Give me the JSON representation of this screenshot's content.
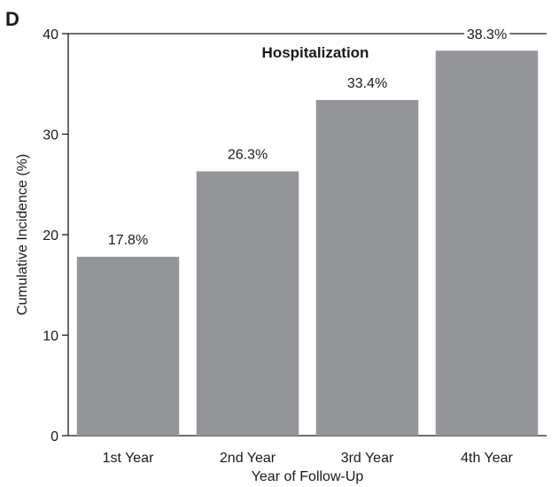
{
  "panel_label": "D",
  "chart_data": {
    "type": "bar",
    "title": "Hospitalization",
    "xlabel": "Year of Follow-Up",
    "ylabel": "Cumulative Incidence (%)",
    "categories": [
      "1st Year",
      "2nd Year",
      "3rd Year",
      "4th Year"
    ],
    "values": [
      17.8,
      26.3,
      33.4,
      38.3
    ],
    "data_labels": [
      "17.8%",
      "26.3%",
      "33.4%",
      "38.3%"
    ],
    "ylim": [
      0,
      40
    ],
    "yticks": [
      0,
      10,
      20,
      30,
      40
    ],
    "bar_color": "#939598",
    "grid": false,
    "legend": "none"
  }
}
